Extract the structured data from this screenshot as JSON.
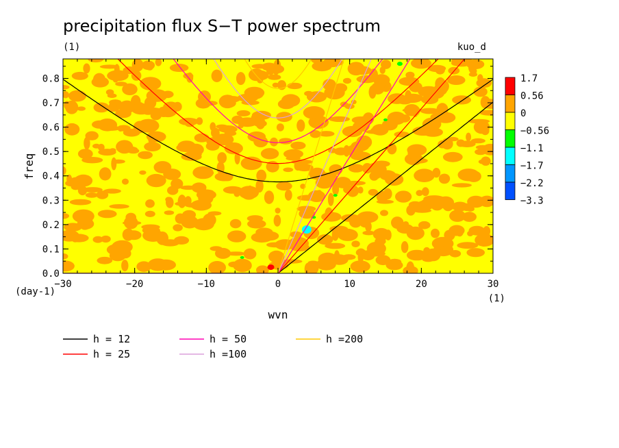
{
  "chart_data": {
    "type": "heatmap",
    "title": "precipitation flux S−T power spectrum",
    "subtitle": "(1)",
    "dataset_label": "kuo_d",
    "xlabel": "wvn",
    "ylabel": "freq",
    "x_unit": "(1)",
    "y_unit": "(day-1)",
    "xlim": [
      -30,
      30
    ],
    "ylim": [
      0,
      0.88
    ],
    "xticks": [
      "−30",
      "−20",
      "−10",
      "0",
      "10",
      "20",
      "30"
    ],
    "xtick_values": [
      -30,
      -20,
      -10,
      0,
      10,
      20,
      30
    ],
    "yticks": [
      "0.0",
      "0.1",
      "0.2",
      "0.3",
      "0.4",
      "0.5",
      "0.6",
      "0.7",
      "0.8"
    ],
    "ytick_values": [
      0,
      0.1,
      0.2,
      0.3,
      0.4,
      0.5,
      0.6,
      0.7,
      0.8
    ],
    "colorbar": {
      "labels": [
        "1.7",
        "0.56",
        "0",
        "−0.56",
        "−1.1",
        "−1.7",
        "−2.2",
        "−3.3"
      ],
      "colors": [
        "#ff0000",
        "#ffa500",
        "#ffff00",
        "#00ff00",
        "#00ffff",
        "#0096ff",
        "#0050ff"
      ]
    },
    "dispersion_curves": [
      {
        "label": "h = 12",
        "color": "#000000",
        "depth": 12
      },
      {
        "label": "h = 25",
        "color": "#ff0000",
        "depth": 25
      },
      {
        "label": "h = 50",
        "color": "#ff00b4",
        "depth": 50
      },
      {
        "label": "h =100",
        "color": "#dca0dc",
        "depth": 100
      },
      {
        "label": "h =200",
        "color": "#ffc800",
        "depth": 200
      }
    ],
    "field_colors": {
      "background": "#ffff00",
      "patch": "#ffa500"
    }
  }
}
